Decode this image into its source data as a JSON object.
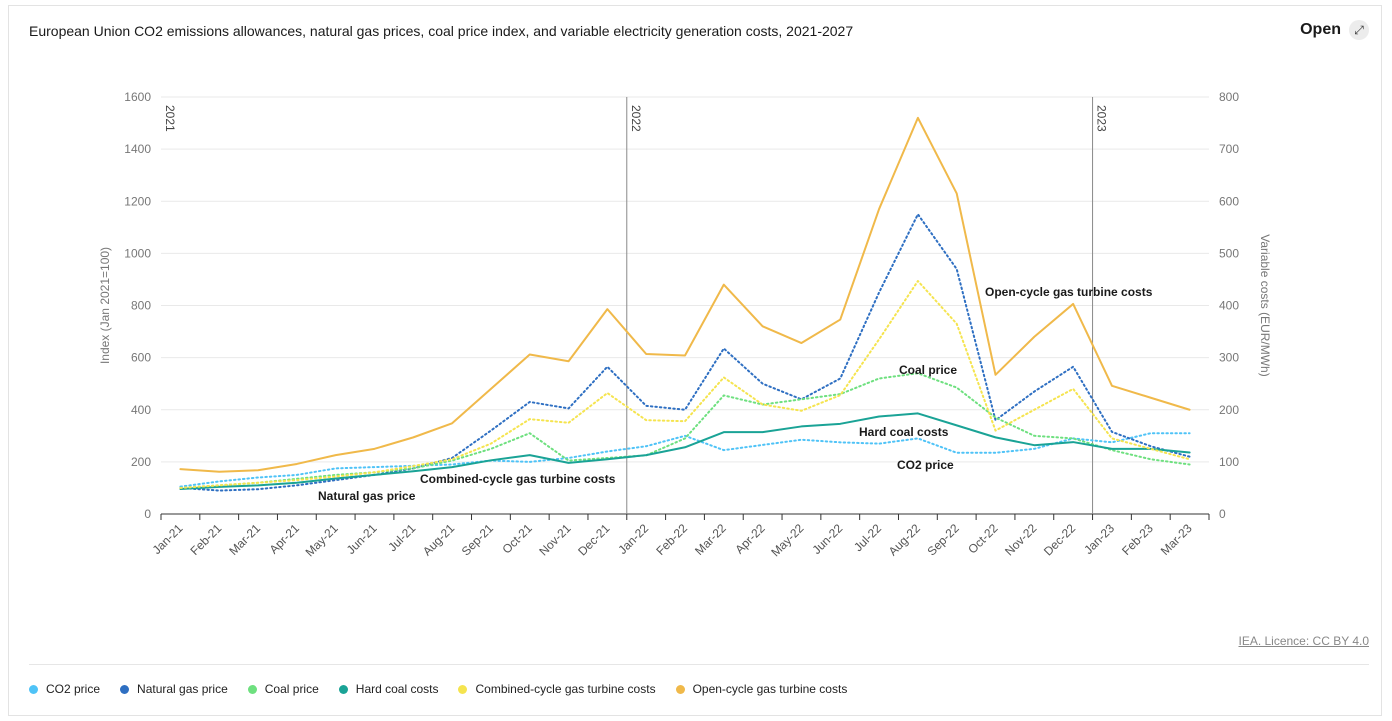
{
  "header": {
    "title": "European Union CO2 emissions allowances, natural gas prices, coal price index, and variable electricity generation costs, 2021-2027",
    "open_label": "Open",
    "open_icon": "expand-arrow-icon"
  },
  "credit": "IEA. Licence: CC BY 4.0",
  "chart_data": {
    "type": "line",
    "categories": [
      "Jan-21",
      "Feb-21",
      "Mar-21",
      "Apr-21",
      "May-21",
      "Jun-21",
      "Jul-21",
      "Aug-21",
      "Sep-21",
      "Oct-21",
      "Nov-21",
      "Dec-21",
      "Jan-22",
      "Feb-22",
      "Mar-22",
      "Apr-22",
      "May-22",
      "Jun-22",
      "Jul-22",
      "Aug-22",
      "Sep-22",
      "Oct-22",
      "Nov-22",
      "Dec-22",
      "Jan-23",
      "Feb-23",
      "Mar-23"
    ],
    "ylabel": "Index (Jan 2021=100)",
    "y2label": "Variable costs (EUR/MWh)",
    "ylim": [
      0,
      1600
    ],
    "y2lim": [
      0,
      800
    ],
    "yticks": [
      "0",
      "200",
      "400",
      "600",
      "800",
      "1000",
      "1200",
      "1400",
      "1600"
    ],
    "y2ticks": [
      "0",
      "100",
      "200",
      "300",
      "400",
      "500",
      "600",
      "700",
      "800"
    ],
    "grid": true,
    "year_markers": [
      {
        "label": "2021",
        "at": "Jan-21"
      },
      {
        "label": "2022",
        "at": "Jan-22"
      },
      {
        "label": "2023",
        "at": "Jan-23"
      }
    ],
    "series": [
      {
        "name": "CO2 price",
        "axis": "left",
        "style": "dotted",
        "color": "#4fc3f7",
        "values": [
          105,
          125,
          140,
          150,
          175,
          180,
          185,
          190,
          205,
          200,
          215,
          240,
          260,
          300,
          245,
          265,
          285,
          275,
          270,
          290,
          235,
          235,
          250,
          290,
          275,
          310,
          310
        ]
      },
      {
        "name": "Natural gas price",
        "axis": "left",
        "style": "dotted",
        "color": "#2e6fc2",
        "values": [
          100,
          90,
          95,
          110,
          130,
          150,
          175,
          215,
          320,
          430,
          405,
          565,
          415,
          400,
          635,
          500,
          440,
          520,
          850,
          1150,
          940,
          360,
          470,
          565,
          315,
          260,
          220
        ]
      },
      {
        "name": "Coal price",
        "axis": "left",
        "style": "dotted",
        "color": "#6ee07f",
        "values": [
          100,
          110,
          120,
          135,
          150,
          160,
          175,
          205,
          250,
          310,
          205,
          215,
          225,
          290,
          455,
          420,
          440,
          460,
          520,
          540,
          485,
          370,
          300,
          290,
          245,
          210,
          190
        ]
      },
      {
        "name": "Hard coal costs",
        "axis": "right",
        "style": "solid",
        "color": "#1aa396",
        "values": [
          48,
          52,
          55,
          60,
          68,
          75,
          82,
          90,
          103,
          113,
          98,
          105,
          113,
          128,
          157,
          157,
          168,
          173,
          187,
          193,
          170,
          147,
          132,
          138,
          125,
          125,
          118
        ]
      },
      {
        "name": "Combined-cycle gas turbine costs",
        "axis": "right",
        "style": "dotted",
        "color": "#f5e44f",
        "values": [
          50,
          55,
          60,
          65,
          72,
          80,
          92,
          105,
          135,
          182,
          175,
          232,
          180,
          178,
          262,
          210,
          198,
          228,
          335,
          447,
          365,
          160,
          200,
          240,
          145,
          125,
          105
        ]
      },
      {
        "name": "Open-cycle gas turbine costs",
        "axis": "right",
        "style": "solid",
        "color": "#f0b94a",
        "values": [
          86,
          81,
          84,
          96,
          113,
          125,
          147,
          174,
          240,
          306,
          293,
          393,
          307,
          304,
          440,
          360,
          328,
          373,
          585,
          760,
          615,
          267,
          340,
          403,
          246,
          223,
          200
        ]
      }
    ],
    "annotations": [
      {
        "text": "Open-cycle gas turbine costs",
        "series": "Open-cycle gas turbine costs"
      },
      {
        "text": "Coal price",
        "series": "Coal price"
      },
      {
        "text": "Hard coal costs",
        "series": "Hard coal costs"
      },
      {
        "text": "CO2 price",
        "series": "CO2 price"
      },
      {
        "text": "Combined-cycle gas turbine costs",
        "series": "Combined-cycle gas turbine costs"
      },
      {
        "text": "Natural gas price",
        "series": "Natural gas price"
      }
    ]
  }
}
